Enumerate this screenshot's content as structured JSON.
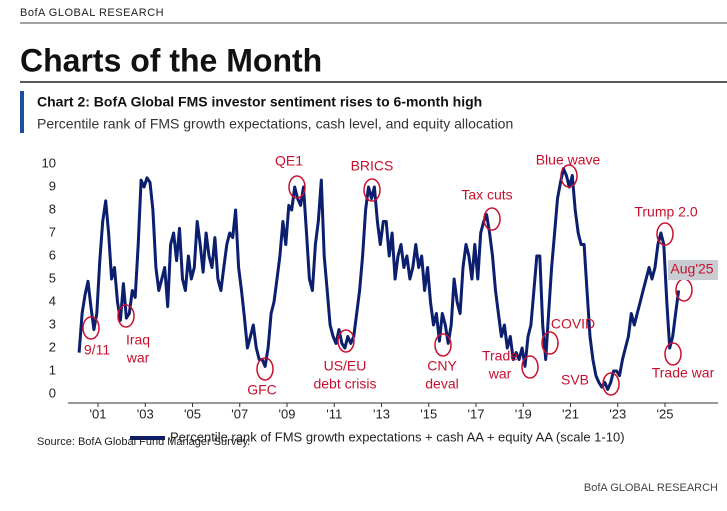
{
  "header": {
    "brand": "BofA GLOBAL RESEARCH",
    "title": "Charts of the Month"
  },
  "chart_data": {
    "type": "line",
    "title": "Chart 2: BofA Global FMS investor sentiment rises to 6-month high",
    "subtitle": "Percentile rank of FMS growth expectations, cash level, and equity allocation",
    "x": [
      2000.2,
      2000.325,
      2000.45,
      2000.575,
      2000.7,
      2000.825,
      2000.95,
      2001.075,
      2001.2,
      2001.325,
      2001.45,
      2001.575,
      2001.7,
      2001.825,
      2001.95,
      2002.075,
      2002.2,
      2002.325,
      2002.45,
      2002.575,
      2002.7,
      2002.825,
      2002.95,
      2003.075,
      2003.2,
      2003.325,
      2003.45,
      2003.575,
      2003.7,
      2003.825,
      2003.95,
      2004.075,
      2004.2,
      2004.325,
      2004.45,
      2004.575,
      2004.7,
      2004.825,
      2004.95,
      2005.075,
      2005.2,
      2005.325,
      2005.45,
      2005.575,
      2005.7,
      2005.825,
      2005.95,
      2006.075,
      2006.2,
      2006.325,
      2006.45,
      2006.575,
      2006.7,
      2006.825,
      2006.95,
      2007.075,
      2007.2,
      2007.325,
      2007.45,
      2007.575,
      2007.7,
      2007.825,
      2007.95,
      2008.075,
      2008.2,
      2008.325,
      2008.45,
      2008.575,
      2008.7,
      2008.825,
      2008.95,
      2009.075,
      2009.2,
      2009.325,
      2009.45,
      2009.575,
      2009.7,
      2009.825,
      2009.95,
      2010.075,
      2010.2,
      2010.325,
      2010.45,
      2010.575,
      2010.7,
      2010.825,
      2010.95,
      2011.075,
      2011.2,
      2011.325,
      2011.45,
      2011.575,
      2011.7,
      2011.825,
      2011.95,
      2012.075,
      2012.2,
      2012.325,
      2012.45,
      2012.575,
      2012.7,
      2012.825,
      2012.95,
      2013.075,
      2013.2,
      2013.325,
      2013.45,
      2013.575,
      2013.7,
      2013.825,
      2013.95,
      2014.075,
      2014.2,
      2014.325,
      2014.45,
      2014.575,
      2014.7,
      2014.825,
      2014.95,
      2015.075,
      2015.2,
      2015.325,
      2015.45,
      2015.575,
      2015.7,
      2015.825,
      2015.95,
      2016.075,
      2016.2,
      2016.325,
      2016.45,
      2016.575,
      2016.7,
      2016.825,
      2016.95,
      2017.075,
      2017.2,
      2017.325,
      2017.45,
      2017.575,
      2017.7,
      2017.825,
      2017.95,
      2018.075,
      2018.2,
      2018.325,
      2018.45,
      2018.575,
      2018.7,
      2018.825,
      2018.95,
      2019.075,
      2019.2,
      2019.325,
      2019.45,
      2019.575,
      2019.7,
      2019.825,
      2019.95,
      2020.075,
      2020.2,
      2020.325,
      2020.45,
      2020.575,
      2020.7,
      2020.825,
      2020.95,
      2021.075,
      2021.2,
      2021.325,
      2021.45,
      2021.575,
      2021.7,
      2021.825,
      2021.95,
      2022.075,
      2022.2,
      2022.325,
      2022.45,
      2022.575,
      2022.7,
      2022.825,
      2022.95,
      2023.075,
      2023.2,
      2023.325,
      2023.45,
      2023.575,
      2023.7,
      2023.825,
      2023.95,
      2024.075,
      2024.2,
      2024.325,
      2024.45,
      2024.575,
      2024.7,
      2024.825,
      2024.95,
      2025.075,
      2025.2,
      2025.325,
      2025.45,
      2025.575
    ],
    "series": [
      {
        "name": "Percentile rank of FMS growth expectations + cash AA + equity AA (scale 1-10)",
        "color": "#0b1f6e",
        "values": [
          1.8,
          3.5,
          4.3,
          4.9,
          3.8,
          2.8,
          3.5,
          5.8,
          7.5,
          8.4,
          7.0,
          5.0,
          5.5,
          4.0,
          3.2,
          4.8,
          3.3,
          3.5,
          4.5,
          4.2,
          6.5,
          9.3,
          9.0,
          9.4,
          9.2,
          8.0,
          5.5,
          4.5,
          5.0,
          5.5,
          3.8,
          6.5,
          7.0,
          5.8,
          7.2,
          5.0,
          4.5,
          6.0,
          5.0,
          5.5,
          7.5,
          6.5,
          5.3,
          7.0,
          6.0,
          5.5,
          6.8,
          5.0,
          4.5,
          5.5,
          6.5,
          7.0,
          6.8,
          8.0,
          5.5,
          4.5,
          3.3,
          2.0,
          2.5,
          3.0,
          2.0,
          1.5,
          1.5,
          1.2,
          2.0,
          3.5,
          4.0,
          5.0,
          6.0,
          7.5,
          6.5,
          8.2,
          8.0,
          9.0,
          8.5,
          8.2,
          9.0,
          7.0,
          5.0,
          4.5,
          6.5,
          7.5,
          9.3,
          6.0,
          4.5,
          3.0,
          2.5,
          2.2,
          2.8,
          2.2,
          2.0,
          2.5,
          2.2,
          2.5,
          3.5,
          4.5,
          6.0,
          8.0,
          9.0,
          8.5,
          9.0,
          7.5,
          6.5,
          7.5,
          7.5,
          6.0,
          7.0,
          5.0,
          6.0,
          6.5,
          5.5,
          6.0,
          5.0,
          5.5,
          6.5,
          5.5,
          6.0,
          4.5,
          5.5,
          4.0,
          3.0,
          3.5,
          2.3,
          3.5,
          3.0,
          2.2,
          3.0,
          5.0,
          4.0,
          3.5,
          5.5,
          6.5,
          6.0,
          5.0,
          6.5,
          5.0,
          7.0,
          7.5,
          7.8,
          7.0,
          6.0,
          4.5,
          3.5,
          2.5,
          3.0,
          2.0,
          2.5,
          1.5,
          1.8,
          1.5,
          2.0,
          1.2,
          2.5,
          3.0,
          4.5,
          6.0,
          6.0,
          3.0,
          1.5,
          3.5,
          5.5,
          7.0,
          8.5,
          9.2,
          9.8,
          9.5,
          9.0,
          9.5,
          8.0,
          7.0,
          6.5,
          6.5,
          4.5,
          2.5,
          1.5,
          0.8,
          0.5,
          0.3,
          0.5,
          0.2,
          0.5,
          1.0,
          1.0,
          0.8,
          1.5,
          2.0,
          2.5,
          3.5,
          3.0,
          3.5,
          4.0,
          4.5,
          5.0,
          5.5,
          5.0,
          5.5,
          6.5,
          7.0,
          6.5,
          4.0,
          2.0,
          2.5,
          3.5,
          4.5
        ]
      }
    ],
    "xlim": [
      2000,
      2027
    ],
    "ylim": [
      0,
      10.5
    ],
    "xticks": [
      {
        "value": 2001,
        "label": "'01"
      },
      {
        "value": 2003,
        "label": "'03"
      },
      {
        "value": 2005,
        "label": "'05"
      },
      {
        "value": 2007,
        "label": "'07"
      },
      {
        "value": 2009,
        "label": "'09"
      },
      {
        "value": 2011,
        "label": "'11"
      },
      {
        "value": 2013,
        "label": "'13"
      },
      {
        "value": 2015,
        "label": "'15"
      },
      {
        "value": 2017,
        "label": "'17"
      },
      {
        "value": 2019,
        "label": "'19"
      },
      {
        "value": 2021,
        "label": "'21"
      },
      {
        "value": 2023,
        "label": "'23"
      },
      {
        "value": 2025,
        "label": "'25"
      }
    ],
    "yticks": [
      0,
      1,
      2,
      3,
      4,
      5,
      6,
      7,
      8,
      9,
      10
    ],
    "annotations": [
      [
        "9/11"
      ],
      [
        "Iraq",
        "war"
      ],
      [
        "GFC"
      ],
      [
        "QE1"
      ],
      [
        "US/EU",
        "debt crisis"
      ],
      [
        "BRICS"
      ],
      [
        "CNY",
        "deval"
      ],
      [
        "Tax cuts"
      ],
      [
        "Trade",
        "war"
      ],
      [
        "COVID"
      ],
      [
        "Blue wave"
      ],
      [
        "SVB"
      ],
      [
        "Trump 2.0"
      ],
      [
        "Aug'25"
      ],
      [
        "Trade war"
      ]
    ],
    "source": "Source: BofA Global Fund Manager Survey."
  },
  "footer": "BofA GLOBAL RESEARCH"
}
